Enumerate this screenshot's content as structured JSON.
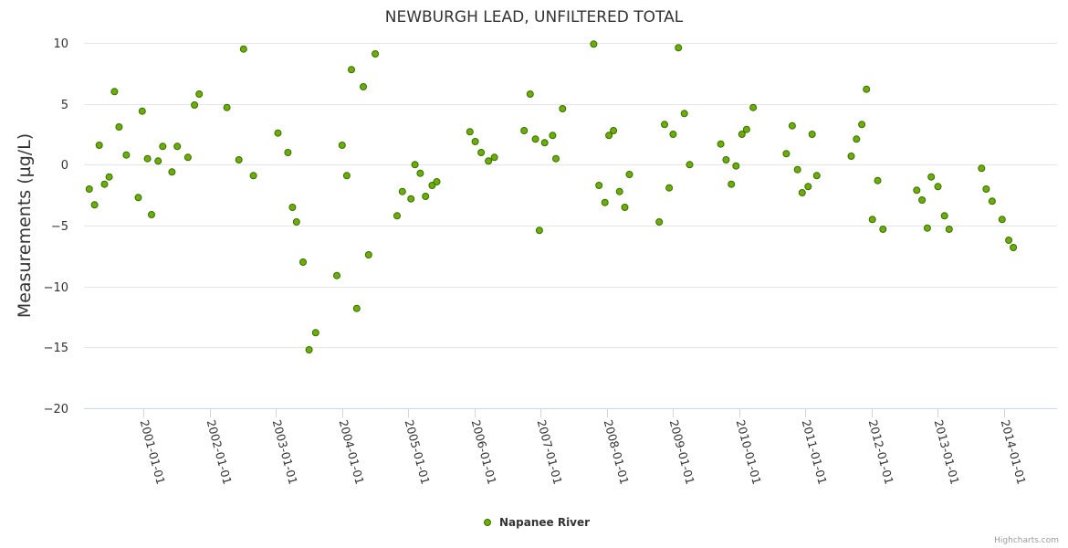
{
  "chart_data": {
    "type": "scatter",
    "title": "NEWBURGH LEAD, UNFILTERED TOTAL",
    "ylabel": "Measurements (µg/L)",
    "xlabel": "",
    "ylim": [
      -20,
      10
    ],
    "yticks": [
      10,
      5,
      0,
      -5,
      -10,
      -15,
      -20
    ],
    "x_ticks": [
      "2001-01-01",
      "2002-01-01",
      "2003-01-01",
      "2004-01-01",
      "2005-01-01",
      "2006-01-01",
      "2007-01-01",
      "2008-01-01",
      "2009-01-01",
      "2010-01-01",
      "2011-01-01",
      "2012-01-01",
      "2013-01-01",
      "2014-01-01"
    ],
    "xlim": [
      2000.1,
      2014.8
    ],
    "grid": true,
    "legend": "bottom-center",
    "series": [
      {
        "name": "Napanee River",
        "color": "#6aaf08",
        "points": [
          [
            2000.18,
            -2.0
          ],
          [
            2000.26,
            -3.3
          ],
          [
            2000.33,
            1.6
          ],
          [
            2000.41,
            -1.6
          ],
          [
            2000.48,
            -1.0
          ],
          [
            2000.56,
            6.0
          ],
          [
            2000.63,
            3.1
          ],
          [
            2000.74,
            0.8
          ],
          [
            2000.92,
            -2.7
          ],
          [
            2000.98,
            4.4
          ],
          [
            2001.06,
            0.5
          ],
          [
            2001.12,
            -4.1
          ],
          [
            2001.22,
            0.3
          ],
          [
            2001.29,
            1.5
          ],
          [
            2001.43,
            -0.6
          ],
          [
            2001.51,
            1.5
          ],
          [
            2001.67,
            0.6
          ],
          [
            2001.77,
            4.9
          ],
          [
            2001.84,
            5.8
          ],
          [
            2002.26,
            4.7
          ],
          [
            2002.44,
            0.4
          ],
          [
            2002.51,
            9.5
          ],
          [
            2002.66,
            -0.9
          ],
          [
            2003.03,
            2.6
          ],
          [
            2003.18,
            1.0
          ],
          [
            2003.25,
            -3.5
          ],
          [
            2003.31,
            -4.7
          ],
          [
            2003.41,
            -8.0
          ],
          [
            2003.5,
            -15.2
          ],
          [
            2003.6,
            -13.8
          ],
          [
            2003.92,
            -9.1
          ],
          [
            2004.0,
            1.6
          ],
          [
            2004.07,
            -0.9
          ],
          [
            2004.14,
            7.8
          ],
          [
            2004.22,
            -11.8
          ],
          [
            2004.32,
            6.4
          ],
          [
            2004.4,
            -7.4
          ],
          [
            2004.5,
            9.1
          ],
          [
            2004.83,
            -4.2
          ],
          [
            2004.91,
            -2.2
          ],
          [
            2005.04,
            -2.8
          ],
          [
            2005.1,
            0.0
          ],
          [
            2005.18,
            -0.7
          ],
          [
            2005.26,
            -2.6
          ],
          [
            2005.36,
            -1.7
          ],
          [
            2005.43,
            -1.4
          ],
          [
            2005.93,
            2.7
          ],
          [
            2006.01,
            1.9
          ],
          [
            2006.1,
            1.0
          ],
          [
            2006.21,
            0.3
          ],
          [
            2006.3,
            0.6
          ],
          [
            2006.75,
            2.8
          ],
          [
            2006.84,
            5.8
          ],
          [
            2006.92,
            2.1
          ],
          [
            2006.98,
            -5.4
          ],
          [
            2007.06,
            1.8
          ],
          [
            2007.18,
            2.4
          ],
          [
            2007.23,
            0.5
          ],
          [
            2007.33,
            4.6
          ],
          [
            2007.8,
            9.9
          ],
          [
            2007.88,
            -1.7
          ],
          [
            2007.97,
            -3.1
          ],
          [
            2008.03,
            2.4
          ],
          [
            2008.1,
            2.8
          ],
          [
            2008.19,
            -2.2
          ],
          [
            2008.27,
            -3.5
          ],
          [
            2008.34,
            -0.8
          ],
          [
            2008.79,
            -4.7
          ],
          [
            2008.87,
            3.3
          ],
          [
            2008.94,
            -1.9
          ],
          [
            2009.0,
            2.5
          ],
          [
            2009.08,
            9.6
          ],
          [
            2009.17,
            4.2
          ],
          [
            2009.25,
            0.0
          ],
          [
            2009.72,
            1.7
          ],
          [
            2009.8,
            0.4
          ],
          [
            2009.88,
            -1.6
          ],
          [
            2009.95,
            -0.1
          ],
          [
            2010.04,
            2.5
          ],
          [
            2010.11,
            2.9
          ],
          [
            2010.21,
            4.7
          ],
          [
            2010.71,
            0.9
          ],
          [
            2010.8,
            3.2
          ],
          [
            2010.88,
            -0.4
          ],
          [
            2010.95,
            -2.3
          ],
          [
            2011.04,
            -1.8
          ],
          [
            2011.1,
            2.5
          ],
          [
            2011.17,
            -0.9
          ],
          [
            2011.69,
            0.7
          ],
          [
            2011.77,
            2.1
          ],
          [
            2011.85,
            3.3
          ],
          [
            2011.92,
            6.2
          ],
          [
            2012.01,
            -4.5
          ],
          [
            2012.09,
            -1.3
          ],
          [
            2012.17,
            -5.3
          ],
          [
            2012.68,
            -2.1
          ],
          [
            2012.76,
            -2.9
          ],
          [
            2012.84,
            -5.2
          ],
          [
            2012.9,
            -1.0
          ],
          [
            2013.0,
            -1.8
          ],
          [
            2013.1,
            -4.2
          ],
          [
            2013.17,
            -5.3
          ],
          [
            2013.66,
            -0.3
          ],
          [
            2013.73,
            -2.0
          ],
          [
            2013.82,
            -3.0
          ],
          [
            2013.97,
            -4.5
          ],
          [
            2014.07,
            -6.2
          ],
          [
            2014.14,
            -6.8
          ]
        ]
      }
    ]
  },
  "credit": "Highcharts.com"
}
